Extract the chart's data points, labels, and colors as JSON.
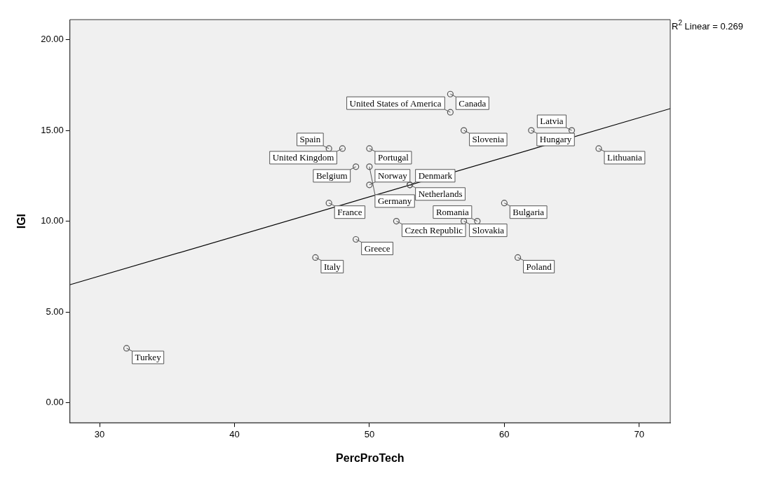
{
  "chart_data": {
    "type": "scatter",
    "xlabel": "PercProTech",
    "ylabel": "IGI",
    "xlim": [
      27.8,
      72.3
    ],
    "xticks": [
      30,
      40,
      50,
      60,
      70
    ],
    "ylim": [
      -1.1,
      21.1
    ],
    "yticks": [
      {
        "value": 0,
        "label": "0.00"
      },
      {
        "value": 5,
        "label": "5.00"
      },
      {
        "value": 10,
        "label": "10.00"
      },
      {
        "value": 15,
        "label": "15.00"
      },
      {
        "value": 20,
        "label": "20.00"
      }
    ],
    "grid": false,
    "legend": false,
    "marker": "circle",
    "annotations": [
      "R$^{2}$ Linear = 0.269"
    ],
    "series": [
      {
        "color": "#555555",
        "x": [
          32,
          46,
          49,
          61,
          47,
          48,
          50,
          49,
          50,
          50,
          47,
          52,
          56,
          56,
          57,
          62,
          65,
          67,
          53,
          53,
          60,
          57,
          58
        ],
        "values": [
          3,
          8,
          9,
          8,
          14,
          14,
          14,
          13,
          13,
          12,
          11,
          10,
          17,
          16,
          15,
          15,
          15,
          14,
          12,
          12,
          11,
          10,
          10
        ],
        "value_labels": [
          "Turkey",
          "Italy",
          "Greece",
          "Poland",
          "Spain",
          "United Kingdom",
          "Portugal",
          "Belgium",
          "Germany",
          "Norway",
          "France",
          "Czech Republic",
          "Canada",
          "United States of America",
          "Slovenia",
          "Hungary",
          "Latvia",
          "Lithuania",
          "Denmark",
          "Netherlands",
          "Bulgaria",
          "Slovakia",
          "Romania"
        ]
      },
      {
        "type": "line",
        "marker": "none",
        "color": "#000000",
        "x": [
          27.8,
          72.3
        ],
        "values": [
          6.5,
          16.2
        ]
      }
    ]
  }
}
